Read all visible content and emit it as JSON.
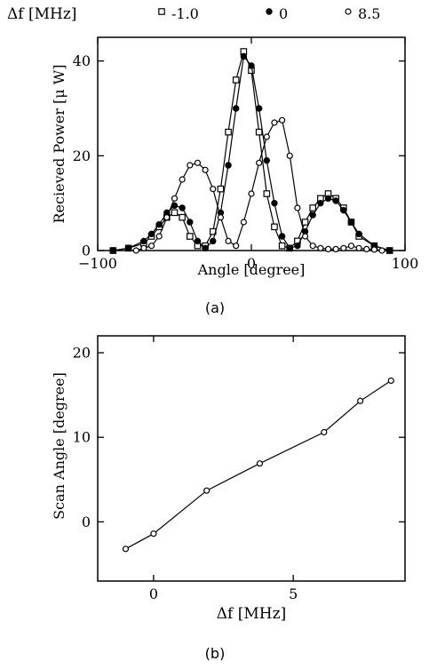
{
  "chart_data": [
    {
      "type": "line",
      "panel_label": "(a)",
      "xlabel": "Angle [degree]",
      "ylabel": "Recieved Power [μ W]",
      "xlim": [
        -100,
        100
      ],
      "ylim": [
        0,
        45
      ],
      "xticks": [
        -100,
        0,
        100
      ],
      "yticks": [
        0,
        20,
        40
      ],
      "grid": false,
      "legend_title": "Δf [MHz]",
      "legend_position": "top, above plot",
      "series": [
        {
          "name": "-1.0",
          "marker": "open-square",
          "x": [
            -90,
            -80,
            -70,
            -65,
            -60,
            -55,
            -50,
            -45,
            -40,
            -35,
            -30,
            -25,
            -20,
            -15,
            -10,
            -5,
            0,
            5,
            10,
            15,
            20,
            25,
            30,
            35,
            40,
            45,
            50,
            55,
            60,
            65,
            70,
            80,
            90
          ],
          "y": [
            0,
            0.5,
            1.5,
            3,
            5,
            7,
            8,
            7,
            3,
            1,
            1,
            4,
            13,
            25,
            36,
            42,
            38,
            25,
            12,
            5,
            1,
            0.5,
            2,
            6,
            9,
            11,
            12,
            11,
            9,
            6,
            3,
            1,
            0
          ]
        },
        {
          "name": "0",
          "marker": "filled-circle",
          "x": [
            -90,
            -80,
            -70,
            -65,
            -60,
            -55,
            -50,
            -45,
            -40,
            -35,
            -30,
            -25,
            -20,
            -15,
            -10,
            -5,
            0,
            5,
            10,
            15,
            20,
            25,
            30,
            35,
            40,
            45,
            50,
            55,
            60,
            65,
            70,
            80,
            90
          ],
          "y": [
            0,
            0.5,
            2,
            3.5,
            5.5,
            8,
            9.5,
            9,
            6,
            2,
            0.5,
            2,
            8,
            18,
            30,
            41,
            39,
            30,
            19,
            10,
            3,
            0.5,
            1,
            4,
            7.5,
            10,
            11,
            10.5,
            8.5,
            6,
            3.5,
            1,
            0
          ]
        },
        {
          "name": "8.5",
          "marker": "open-circle",
          "x": [
            -75,
            -70,
            -65,
            -60,
            -55,
            -50,
            -45,
            -40,
            -35,
            -30,
            -25,
            -20,
            -15,
            -10,
            -5,
            0,
            5,
            10,
            15,
            20,
            25,
            30,
            35,
            40,
            45,
            50,
            55,
            60,
            65,
            70,
            75,
            80,
            85
          ],
          "y": [
            0,
            0.5,
            1,
            3,
            7,
            11,
            15,
            18,
            18.5,
            17,
            13,
            7,
            2,
            1,
            6,
            12,
            18.5,
            24,
            27,
            27.5,
            20,
            9,
            3,
            1,
            0.5,
            0.3,
            0.3,
            0.5,
            1,
            0.5,
            0.3,
            0.2,
            0
          ]
        }
      ]
    },
    {
      "type": "line",
      "panel_label": "(b)",
      "xlabel": "Δf [MHz]",
      "ylabel": "Scan Angle [degree]",
      "xlim": [
        -2,
        9
      ],
      "ylim": [
        -7,
        22
      ],
      "xticks": [
        0,
        5
      ],
      "yticks": [
        0,
        10,
        20
      ],
      "grid": false,
      "series": [
        {
          "marker": "open-circle",
          "x": [
            -1.0,
            0.0,
            1.9,
            3.8,
            6.1,
            7.4,
            8.5
          ],
          "y": [
            -3.2,
            -1.4,
            3.7,
            6.9,
            10.6,
            14.3,
            16.7
          ]
        }
      ]
    }
  ]
}
